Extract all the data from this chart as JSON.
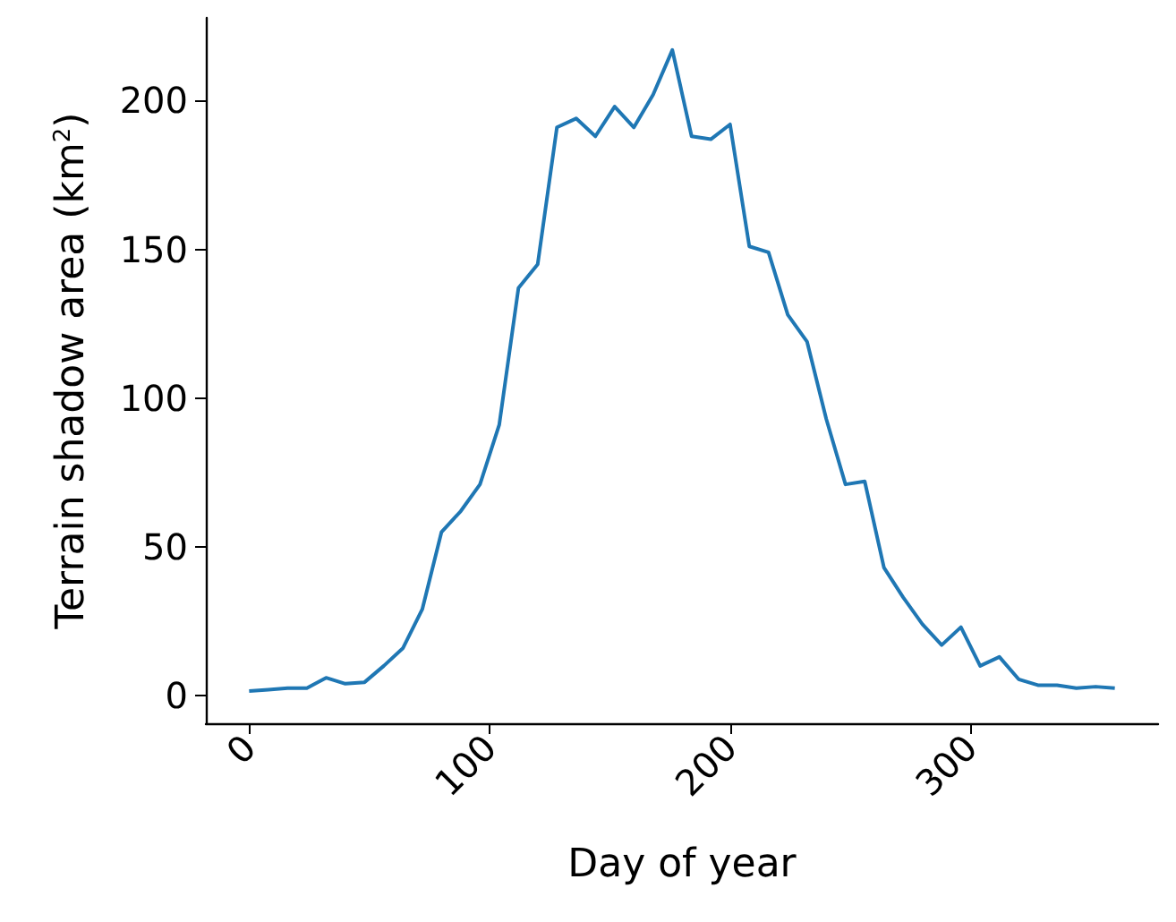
{
  "chart_data": {
    "type": "line",
    "xlabel": "Day of year",
    "ylabel": "Terrain shadow area (km$^{2}$)",
    "x": [
      0,
      8,
      16,
      24,
      32,
      40,
      48,
      56,
      64,
      72,
      80,
      88,
      96,
      104,
      112,
      120,
      128,
      136,
      144,
      152,
      160,
      168,
      176,
      184,
      192,
      200,
      208,
      216,
      224,
      232,
      240,
      248,
      256,
      264,
      272,
      280,
      288,
      296,
      304,
      312,
      320,
      328,
      336,
      344,
      352,
      360
    ],
    "series": [
      {
        "color": "#1f77b4",
        "values": [
          1.5,
          2,
          2.5,
          2.5,
          6,
          4,
          4.5,
          10,
          16,
          29,
          55,
          62,
          71,
          91,
          137,
          145,
          191,
          194,
          188,
          198,
          191,
          202,
          217,
          188,
          187,
          192,
          151,
          149,
          128,
          119,
          93,
          71,
          72,
          43,
          33,
          24,
          17,
          23,
          10,
          13,
          5.5,
          3.5,
          3.5,
          2.5,
          3,
          2.5
        ]
      }
    ],
    "xlim": [
      -18,
      378
    ],
    "xticks": [
      0,
      100,
      200,
      300
    ],
    "ylim": [
      -9.3,
      227.8
    ],
    "yticks": [
      0,
      50,
      100,
      150,
      200
    ],
    "grid": false
  }
}
